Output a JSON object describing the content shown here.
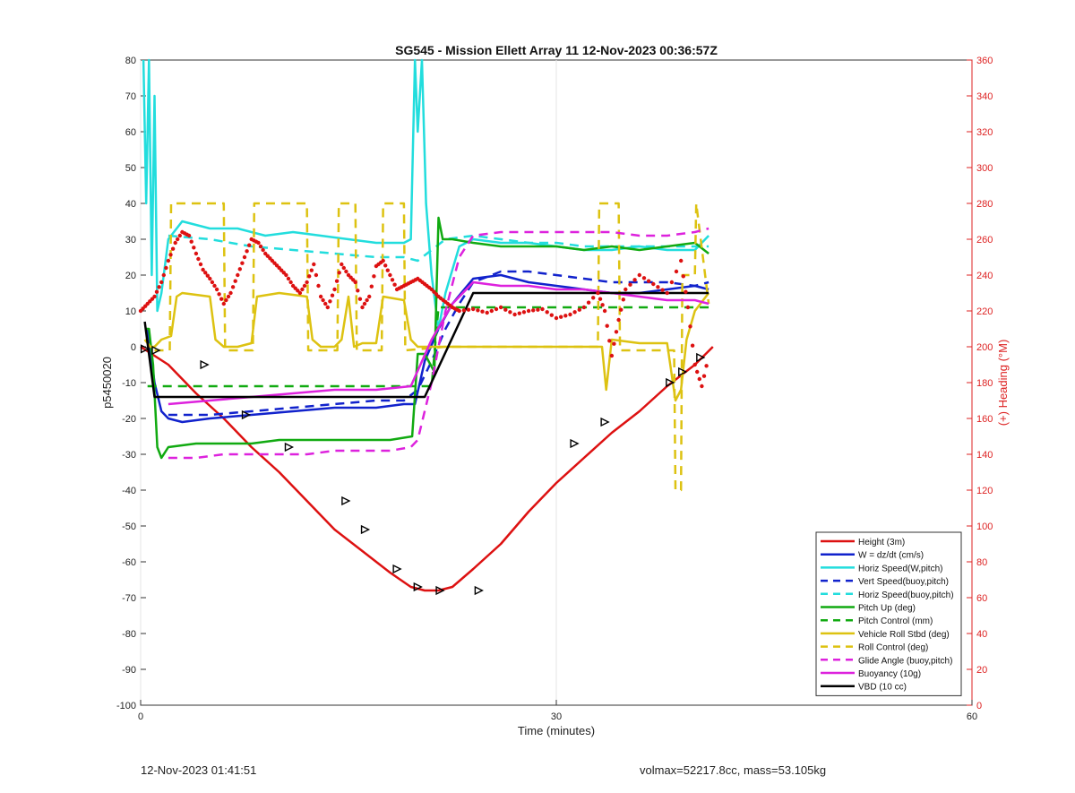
{
  "chart_data": {
    "type": "line",
    "title": "SG545 - Mission Ellett Array 11 12-Nov-2023 00:36:57Z",
    "xlabel": "Time (minutes)",
    "ylabel_left": "p5450020",
    "ylabel_right": "(+) Heading (°M)",
    "xlim": [
      0,
      60
    ],
    "ylim_left": [
      -100,
      80
    ],
    "ylim_right": [
      0,
      360
    ],
    "x_ticks": [
      0,
      30,
      60
    ],
    "y_ticks_left": [
      80,
      70,
      60,
      50,
      40,
      30,
      20,
      10,
      0,
      -10,
      -20,
      -30,
      -40,
      -50,
      -60,
      -70,
      -80,
      -90,
      -100
    ],
    "y_ticks_right": [
      360,
      340,
      320,
      300,
      280,
      260,
      240,
      220,
      200,
      180,
      160,
      140,
      120,
      100,
      80,
      60,
      40,
      20,
      0
    ],
    "grid": "x-only",
    "legend_position": "bottom-right",
    "colors": {
      "left_axis": "#222222",
      "right_axis": "#dd2222"
    },
    "series": [
      {
        "name": "Height (3m)",
        "color": "#dd1111",
        "style": "solid",
        "x": [
          0,
          2,
          4,
          6,
          8,
          10,
          12,
          14,
          16,
          18,
          19.5,
          20.5,
          21.5,
          22.5,
          24,
          26,
          28,
          30,
          32,
          34,
          36,
          38,
          40,
          41.3
        ],
        "y": [
          0,
          -5,
          -13,
          -20,
          -28,
          -35,
          -43,
          -51,
          -57,
          -63,
          -67,
          -68,
          -68,
          -67,
          -62,
          -55,
          -46,
          -38,
          -31,
          -24,
          -18,
          -11,
          -5,
          0
        ]
      },
      {
        "name": "W = dz/dt (cm/s)",
        "color": "#1122cc",
        "style": "solid",
        "x": [
          0.5,
          1,
          1.5,
          2,
          3,
          5,
          8,
          11,
          14,
          17,
          19,
          19.8,
          20.5,
          21.5,
          22.5,
          24,
          26,
          28,
          30,
          32,
          34,
          36,
          38,
          40,
          41
        ],
        "y": [
          5,
          -10,
          -18,
          -20,
          -21,
          -20,
          -19,
          -18,
          -17,
          -17,
          -16,
          -16,
          -4,
          5,
          12,
          19,
          20,
          18,
          17,
          16,
          15,
          15,
          16,
          17,
          16
        ]
      },
      {
        "name": "Horiz Speed(W,pitch)",
        "color": "#22dddd",
        "style": "solid",
        "x": [
          0.2,
          0.4,
          0.6,
          0.8,
          1,
          1.2,
          1.5,
          2,
          3,
          5,
          7,
          9,
          11,
          13,
          15,
          17,
          19,
          19.5,
          19.8,
          20,
          20.3,
          20.6,
          21,
          21.5,
          22,
          23,
          24,
          26,
          28,
          30,
          32,
          34,
          36,
          38,
          40,
          41
        ],
        "y": [
          80,
          40,
          80,
          20,
          70,
          10,
          15,
          30,
          35,
          33,
          33,
          31,
          32,
          31,
          30,
          29,
          29,
          30,
          80,
          60,
          80,
          40,
          20,
          5,
          15,
          28,
          30,
          29,
          29,
          28,
          27,
          27,
          28,
          27,
          27,
          31
        ]
      },
      {
        "name": "Vert Speed(buoy,pitch)",
        "color": "#1122cc",
        "style": "dashed",
        "x": [
          2,
          5,
          8,
          11,
          14,
          17,
          19,
          20,
          21,
          22,
          23,
          24,
          26,
          28,
          30,
          32,
          34,
          36,
          38,
          40,
          41
        ],
        "y": [
          -19,
          -19,
          -18,
          -17,
          -16,
          -15,
          -15,
          -12,
          -4,
          5,
          12,
          18,
          21,
          21,
          20,
          19,
          18,
          18,
          18,
          17,
          18
        ]
      },
      {
        "name": "Horiz Speed(buoy,pitch)",
        "color": "#22dddd",
        "style": "dashed",
        "x": [
          2,
          5,
          8,
          11,
          14,
          17,
          19,
          20,
          21,
          22,
          24,
          26,
          28,
          30,
          32,
          34,
          36,
          38,
          40,
          41
        ],
        "y": [
          31,
          30,
          28,
          27,
          26,
          25,
          25,
          24,
          27,
          30,
          31,
          30,
          29,
          29,
          28,
          28,
          28,
          28,
          28,
          28
        ]
      },
      {
        "name": "Pitch Up (deg)",
        "color": "#11aa11",
        "style": "solid",
        "x": [
          0.3,
          0.6,
          0.9,
          1.2,
          1.5,
          2,
          4,
          6,
          8,
          10,
          12,
          14,
          16,
          18,
          19.6,
          20,
          20.5,
          21.2,
          21.5,
          21.8,
          22.5,
          24,
          26,
          28,
          30,
          32,
          34,
          36,
          38,
          40,
          41
        ],
        "y": [
          5,
          5,
          -5,
          -28,
          -31,
          -28,
          -27,
          -27,
          -27,
          -26,
          -26,
          -26,
          -26,
          -26,
          -25,
          -2,
          -2,
          -7,
          36,
          30,
          30,
          29,
          28,
          28,
          28,
          27,
          28,
          27,
          28,
          29,
          26
        ]
      },
      {
        "name": "Pitch Control (mm)",
        "color": "#11aa11",
        "style": "dashed",
        "x": [
          0.5,
          21,
          21.5,
          41
        ],
        "y": [
          -11,
          -11,
          11,
          11
        ]
      },
      {
        "name": "Vehicle Roll Stbd (deg)",
        "color": "#ddc211",
        "style": "solid",
        "x": [
          0.3,
          0.7,
          1,
          1.5,
          2.2,
          2.6,
          3,
          5,
          5.4,
          6,
          7,
          8,
          8.4,
          10,
          12,
          12.4,
          13,
          14,
          14.5,
          15,
          15.4,
          16,
          17,
          17.5,
          19,
          19.5,
          20,
          21,
          24,
          27,
          30,
          32,
          33.3,
          33.6,
          34,
          36,
          38,
          38.6,
          39,
          39.4,
          40,
          41
        ],
        "y": [
          2,
          0,
          0,
          2,
          3,
          14,
          15,
          14,
          2,
          0,
          0,
          1,
          14,
          15,
          14,
          2,
          0,
          0,
          2,
          14,
          0,
          1,
          1,
          14,
          13,
          2,
          0,
          0,
          0,
          0,
          0,
          0,
          0,
          -12,
          2,
          1,
          1,
          -15,
          -12,
          2,
          10,
          15
        ]
      },
      {
        "name": "Roll Control (deg)",
        "color": "#ddc211",
        "style": "dashed",
        "x": [
          1,
          2.1,
          2.2,
          6,
          6.1,
          8.1,
          8.2,
          12,
          12.1,
          14.2,
          14.3,
          15.5,
          15.6,
          17.4,
          17.5,
          19,
          19.1,
          22,
          33,
          33.1,
          34.5,
          34.6,
          38.5,
          38.6,
          39,
          39.1,
          40,
          40.1,
          41
        ],
        "y": [
          -1,
          -1,
          40,
          40,
          -1,
          -1,
          40,
          40,
          -1,
          -1,
          40,
          40,
          -1,
          -1,
          40,
          40,
          -1,
          0,
          0,
          40,
          40,
          -1,
          -1,
          -40,
          -40,
          20,
          20,
          40,
          12
        ]
      },
      {
        "name": "Glide Angle (buoy,pitch)",
        "color": "#dd22dd",
        "style": "dashed",
        "x": [
          2,
          4,
          6,
          8,
          10,
          12,
          14,
          16,
          18,
          19.5,
          20,
          21,
          22,
          23,
          24,
          26,
          28,
          30,
          32,
          34,
          36,
          38,
          40,
          41
        ],
        "y": [
          -31,
          -31,
          -30,
          -30,
          -30,
          -30,
          -29,
          -29,
          -29,
          -28,
          -26,
          -10,
          10,
          25,
          31,
          32,
          32,
          32,
          32,
          32,
          31,
          31,
          32,
          33
        ]
      },
      {
        "name": "Buoyancy (10g)",
        "color": "#dd22dd",
        "style": "solid",
        "x": [
          2,
          5,
          8,
          11,
          14,
          17,
          19.5,
          21,
          22.5,
          24,
          26,
          28,
          30,
          32,
          34,
          36,
          38,
          40,
          41
        ],
        "y": [
          -16,
          -15,
          -14,
          -13,
          -12,
          -12,
          -11,
          2,
          12,
          18,
          17,
          17,
          16,
          16,
          15,
          14,
          13,
          13,
          12
        ]
      },
      {
        "name": "VBD (10 cc)",
        "color": "#000000",
        "style": "solid",
        "x": [
          0.3,
          1,
          20.5,
          24,
          41
        ],
        "y": [
          7,
          -14,
          -14,
          15,
          15
        ]
      }
    ],
    "heading_series": {
      "name": "Heading",
      "color": "#dd1111",
      "style": "dotted",
      "x": [
        0,
        0.5,
        1,
        1.5,
        2,
        2.5,
        3,
        3.5,
        4,
        4.5,
        5,
        5.5,
        6,
        6.5,
        7,
        7.5,
        8,
        8.5,
        9,
        9.5,
        10,
        10.5,
        11,
        11.5,
        12,
        12.5,
        13,
        13.5,
        14,
        14.5,
        15,
        15.5,
        16,
        16.5,
        17,
        17.5,
        18,
        18.5,
        19,
        19.5,
        20,
        20.5,
        21,
        21.5,
        22,
        22.5,
        23,
        24,
        25,
        26,
        27,
        28,
        29,
        30,
        31,
        32,
        33,
        33.5,
        34,
        34.5,
        35,
        36,
        37,
        38,
        39,
        39.5,
        40,
        40.5,
        41
      ],
      "y": [
        220,
        224,
        228,
        236,
        248,
        258,
        264,
        262,
        252,
        243,
        238,
        232,
        224,
        230,
        240,
        250,
        260,
        258,
        252,
        248,
        244,
        240,
        234,
        230,
        236,
        246,
        228,
        222,
        232,
        246,
        240,
        236,
        222,
        228,
        245,
        248,
        240,
        232,
        234,
        236,
        238,
        235,
        232,
        228,
        225,
        222,
        220,
        221,
        219,
        222,
        218,
        220,
        221,
        216,
        218,
        222,
        230,
        220,
        195,
        215,
        232,
        240,
        235,
        230,
        248,
        222,
        190,
        178,
        195
      ]
    },
    "triangle_markers": {
      "x": [
        0.3,
        1.1,
        4.6,
        7.6,
        10.7,
        14.8,
        16.2,
        18.5,
        20,
        21.6,
        24.4,
        31.3,
        33.5,
        38.2,
        39.1,
        40.4
      ],
      "y": [
        -0.6,
        -1,
        -5,
        -19,
        -28,
        -43,
        -51,
        -62,
        -67,
        -68,
        -68,
        -27,
        -21,
        -10,
        -7,
        -3
      ]
    }
  },
  "footer": {
    "left": "12-Nov-2023 01:41:51",
    "right": "volmax=52217.8cc, mass=53.105kg"
  }
}
